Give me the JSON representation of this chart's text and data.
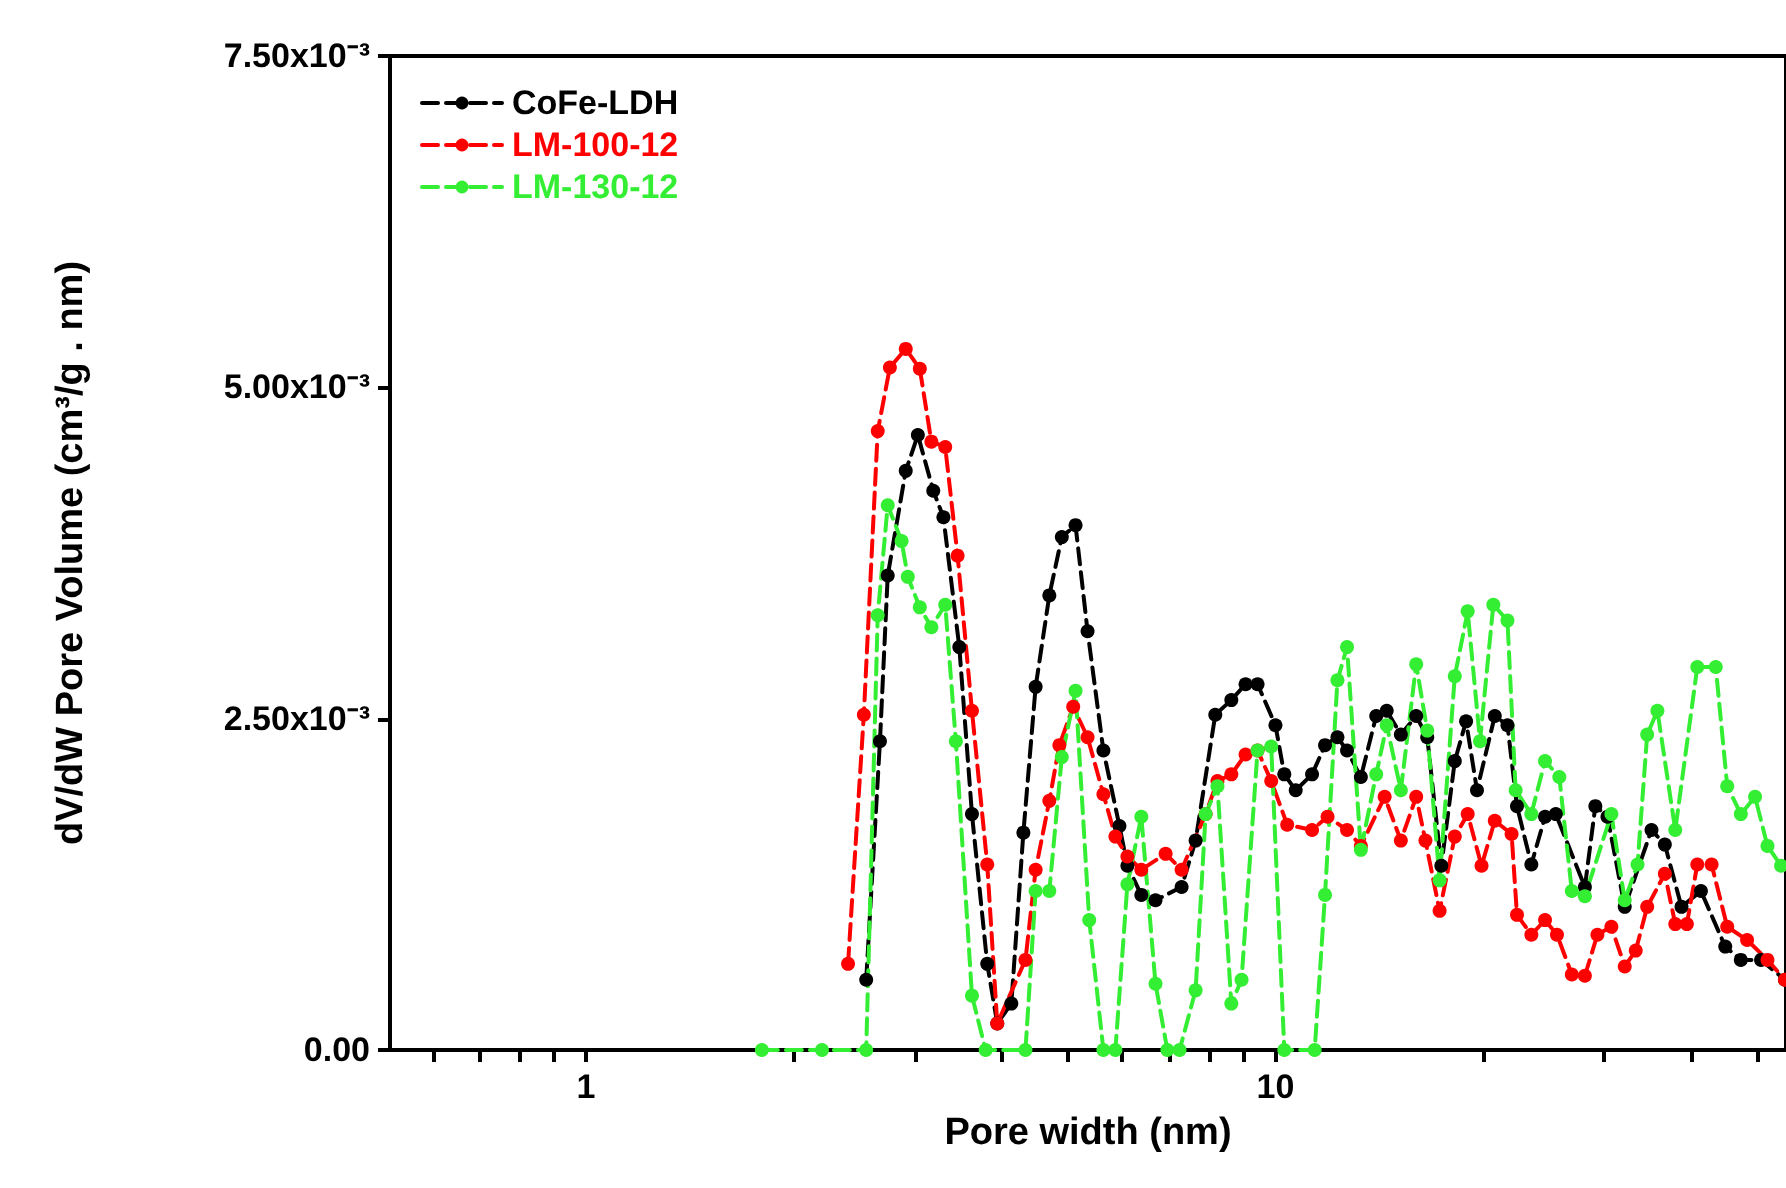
{
  "chart_data": {
    "type": "line",
    "xlabel": "Pore width (nm)",
    "ylabel": "dV/dW Pore Volume (cm³/g . nm)",
    "log": "x",
    "grid": false,
    "legend": "top left",
    "marker": "circle",
    "line_style": "dashed",
    "xlim": [
      0.52,
      55
    ],
    "xticks": [
      {
        "value": 0.6,
        "label": null
      },
      {
        "value": 0.7,
        "label": null
      },
      {
        "value": 0.8,
        "label": null
      },
      {
        "value": 0.9,
        "label": null
      },
      1,
      {
        "value": 2,
        "label": null
      },
      {
        "value": 3,
        "label": null
      },
      {
        "value": 4,
        "label": null
      },
      {
        "value": 5,
        "label": null
      },
      {
        "value": 6,
        "label": null
      },
      {
        "value": 7,
        "label": null
      },
      {
        "value": 8,
        "label": null
      },
      {
        "value": 9,
        "label": null
      },
      10,
      {
        "value": 20,
        "label": null
      },
      {
        "value": 30,
        "label": null
      },
      {
        "value": 40,
        "label": null
      },
      {
        "value": 50,
        "label": null
      }
    ],
    "ylim": [
      0,
      0.0075
    ],
    "yticks": [
      {
        "value": 0,
        "label": "0.00"
      },
      {
        "value": 0.0025,
        "label": "2.50x10⁻³"
      },
      {
        "value": 0.005,
        "label": "5.00x10⁻³"
      },
      {
        "value": 0.0075,
        "label": "7.50x10⁻³"
      }
    ],
    "series": [
      {
        "name": "CoFe-LDH",
        "color": "#000000",
        "x": [
          2.55,
          2.67,
          2.74,
          2.91,
          3.03,
          3.19,
          3.3,
          3.48,
          3.63,
          3.82,
          3.95,
          4.14,
          4.31,
          4.49,
          4.7,
          4.9,
          5.13,
          5.34,
          5.63,
          5.94,
          6.1,
          6.39,
          6.7,
          7.31,
          7.66,
          8.18,
          8.63,
          9.05,
          9.42,
          10.0,
          10.3,
          10.7,
          11.3,
          11.8,
          12.3,
          12.7,
          13.3,
          14.0,
          14.5,
          15.2,
          16.0,
          16.6,
          17.4,
          18.2,
          18.9,
          19.6,
          20.8,
          21.7,
          22.4,
          23.5,
          24.6,
          25.5,
          28.1,
          29.1,
          30.3,
          32.1,
          35.1,
          36.7,
          38.8,
          41.4,
          44.9,
          47.3,
          50.6,
          54.8
        ],
        "values": [
          0.00053,
          0.00233,
          0.00358,
          0.00437,
          0.00464,
          0.00422,
          0.00402,
          0.00304,
          0.00178,
          0.00065,
          0.0002,
          0.00035,
          0.00164,
          0.00274,
          0.00343,
          0.00387,
          0.00396,
          0.00316,
          0.00226,
          0.00169,
          0.00139,
          0.00117,
          0.00113,
          0.00123,
          0.00158,
          0.00253,
          0.00264,
          0.00276,
          0.00276,
          0.00245,
          0.00208,
          0.00196,
          0.00208,
          0.0023,
          0.00236,
          0.00226,
          0.00206,
          0.00252,
          0.00256,
          0.00238,
          0.00252,
          0.00236,
          0.00139,
          0.00218,
          0.00248,
          0.00196,
          0.00252,
          0.00245,
          0.00184,
          0.0014,
          0.00176,
          0.00178,
          0.00123,
          0.00184,
          0.00176,
          0.00108,
          0.00166,
          0.00155,
          0.00108,
          0.0012,
          0.00078,
          0.00068,
          0.00068,
          0.00053
        ]
      },
      {
        "name": "LM-100-12",
        "color": "#ff0000",
        "x": [
          2.4,
          2.53,
          2.65,
          2.76,
          2.91,
          3.05,
          3.17,
          3.32,
          3.46,
          3.63,
          3.82,
          3.95,
          4.34,
          4.49,
          4.7,
          4.86,
          5.09,
          5.34,
          5.63,
          5.86,
          6.1,
          6.39,
          6.93,
          7.31,
          7.92,
          8.24,
          8.63,
          9.05,
          9.42,
          9.86,
          10.4,
          11.3,
          11.9,
          12.7,
          13.3,
          14.4,
          15.2,
          16.0,
          16.5,
          17.3,
          18.2,
          19.0,
          19.9,
          20.8,
          22.0,
          22.4,
          23.5,
          24.6,
          25.6,
          26.9,
          28.1,
          29.3,
          30.7,
          32.1,
          33.3,
          34.6,
          36.7,
          38.0,
          39.5,
          40.9,
          42.9,
          45.2,
          48.3,
          51.7,
          54.8
        ],
        "values": [
          0.00065,
          0.00253,
          0.00467,
          0.00515,
          0.00529,
          0.00514,
          0.00459,
          0.00455,
          0.00373,
          0.00256,
          0.0014,
          0.0002,
          0.00068,
          0.00136,
          0.00188,
          0.0023,
          0.00259,
          0.00236,
          0.00193,
          0.00161,
          0.00146,
          0.00136,
          0.00148,
          0.00136,
          0.00178,
          0.00203,
          0.00208,
          0.00223,
          0.00226,
          0.00203,
          0.0017,
          0.00166,
          0.00176,
          0.00166,
          0.00154,
          0.00191,
          0.00158,
          0.00191,
          0.00158,
          0.00105,
          0.00161,
          0.00178,
          0.00139,
          0.00173,
          0.00163,
          0.00102,
          0.00087,
          0.00098,
          0.00087,
          0.00057,
          0.00056,
          0.00087,
          0.00093,
          0.00063,
          0.00075,
          0.00108,
          0.00133,
          0.00095,
          0.00095,
          0.0014,
          0.0014,
          0.00093,
          0.00083,
          0.00068,
          0.00053
        ]
      },
      {
        "name": "LM-130-12",
        "color": "#33ee33",
        "x": [
          1.8,
          2.2,
          2.55,
          2.65,
          2.74,
          2.87,
          2.93,
          3.05,
          3.17,
          3.32,
          3.44,
          3.63,
          3.8,
          4.34,
          4.49,
          4.7,
          4.9,
          5.13,
          5.37,
          5.63,
          5.86,
          6.1,
          6.39,
          6.7,
          6.97,
          7.26,
          7.66,
          7.92,
          8.24,
          8.63,
          8.93,
          9.42,
          9.86,
          10.3,
          11.4,
          11.8,
          12.3,
          12.7,
          13.3,
          14.0,
          14.5,
          15.2,
          16.0,
          16.6,
          17.3,
          18.2,
          19.0,
          19.8,
          20.7,
          21.7,
          22.3,
          23.5,
          24.6,
          25.8,
          26.9,
          28.1,
          30.7,
          32.1,
          33.5,
          34.6,
          35.8,
          38.0,
          40.9,
          43.5,
          45.2,
          47.3,
          49.6,
          51.7,
          54.1
        ],
        "values": [
          0,
          0,
          0,
          0.00328,
          0.00411,
          0.00384,
          0.00357,
          0.00334,
          0.00319,
          0.00336,
          0.00233,
          0.00041,
          0,
          0,
          0.0012,
          0.0012,
          0.00221,
          0.00271,
          0.00098,
          0,
          0,
          0.00125,
          0.00176,
          0.0005,
          0,
          0,
          0.00045,
          0.00178,
          0.00199,
          0.00035,
          0.00053,
          0.00226,
          0.00229,
          0,
          0,
          0.00117,
          0.00279,
          0.00304,
          0.00151,
          0.00208,
          0.00245,
          0.00196,
          0.00291,
          0.00241,
          0.00128,
          0.00282,
          0.00331,
          0.00233,
          0.00336,
          0.00324,
          0.00196,
          0.00178,
          0.00218,
          0.00206,
          0.0012,
          0.00116,
          0.00178,
          0.00113,
          0.0014,
          0.00238,
          0.00256,
          0.00166,
          0.00289,
          0.00289,
          0.00199,
          0.00178,
          0.00191,
          0.00154,
          0.00139
        ]
      }
    ]
  }
}
